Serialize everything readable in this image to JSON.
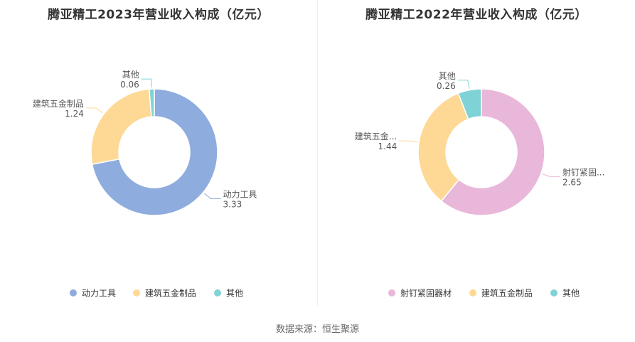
{
  "source": "数据来源：恒生聚源",
  "chart_data": [
    {
      "type": "pie",
      "title": "腾亚精工2023年营业收入构成（亿元）",
      "categories": [
        "动力工具",
        "建筑五金制品",
        "其他"
      ],
      "values": [
        3.33,
        1.24,
        0.06
      ],
      "value_labels": [
        "3.33",
        "1.24",
        "0.06"
      ],
      "label_text": [
        "动力工具",
        "建筑五金制品",
        "其他"
      ],
      "colors": [
        "#8eacdd",
        "#fed995",
        "#7fd3d6"
      ],
      "legend": "bottom"
    },
    {
      "type": "pie",
      "title": "腾亚精工2022年营业收入构成（亿元）",
      "categories": [
        "射钉紧固器材",
        "建筑五金制品",
        "其他"
      ],
      "values": [
        2.65,
        1.44,
        0.26
      ],
      "value_labels": [
        "2.65",
        "1.44",
        "0.26"
      ],
      "label_text": [
        "射钉紧固...",
        "建筑五金...",
        "其他"
      ],
      "colors": [
        "#e9b7d9",
        "#fed995",
        "#7fd3d6"
      ],
      "legend": "bottom"
    }
  ]
}
